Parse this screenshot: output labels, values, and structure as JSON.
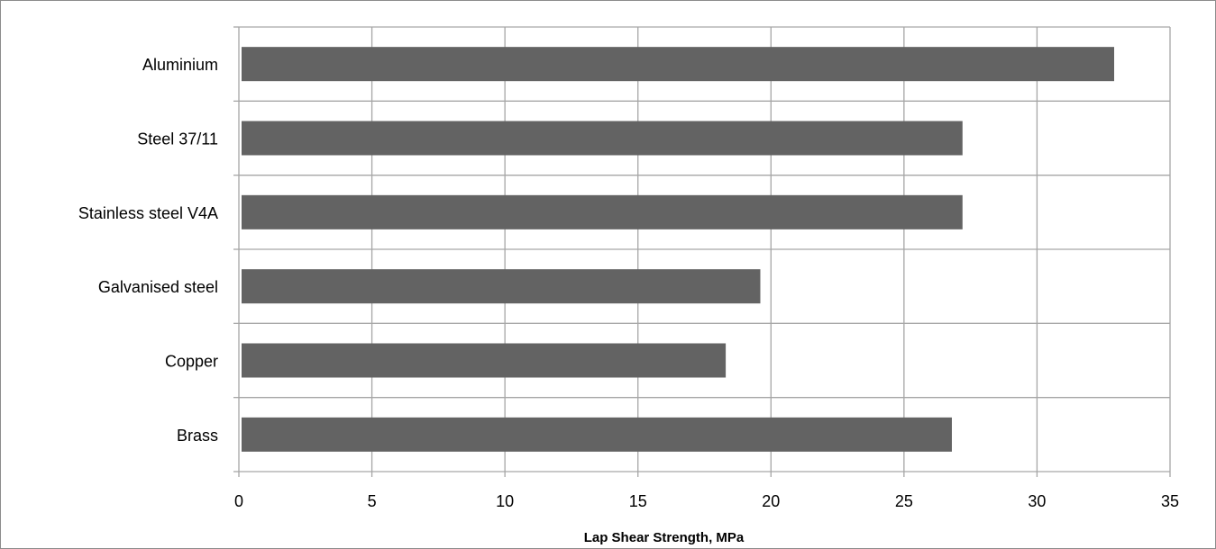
{
  "chart_data": {
    "type": "bar",
    "orientation": "horizontal",
    "categories": [
      "Aluminium",
      "Steel 37/11",
      "Stainless steel V4A",
      "Galvanised steel",
      "Copper",
      "Brass"
    ],
    "values": [
      32.9,
      27.2,
      27.2,
      19.6,
      18.3,
      26.8
    ],
    "title": "",
    "xlabel": "Lap Shear Strength, MPa",
    "ylabel": "",
    "xlim": [
      0,
      35
    ],
    "x_ticks": [
      "0",
      "5",
      "10",
      "15",
      "20",
      "25",
      "30",
      "35"
    ],
    "grid": true,
    "bar_color": "#636363",
    "grid_color": "#a6a6a6"
  }
}
